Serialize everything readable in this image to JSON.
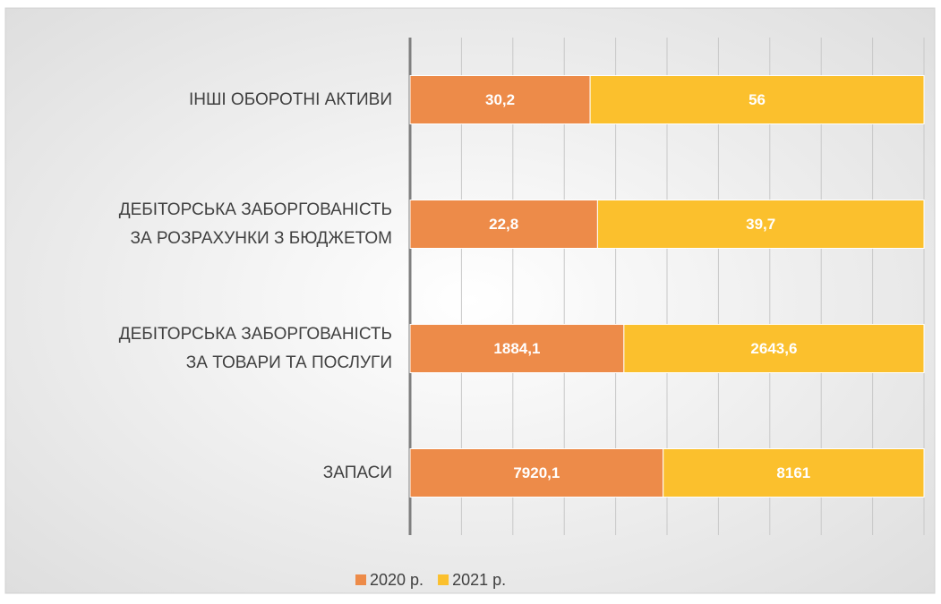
{
  "chart_data": {
    "type": "stacked_bar_100_horizontal",
    "categories": [
      "ІНШІ ОБОРОТНІ АКТИВИ",
      "ДЕБІТОРСЬКА ЗАБОРГОВАНІСТЬ\nЗА РОЗРАХУНКИ З БЮДЖЕТОМ",
      "ДЕБІТОРСЬКА ЗАБОРГОВАНІСТЬ\nЗА ТОВАРИ ТА ПОСЛУГИ",
      "ЗАПАСИ"
    ],
    "series": [
      {
        "name": "2020 р.",
        "color": "#ed8b49",
        "values": [
          30.2,
          22.8,
          1884.1,
          7920.1
        ],
        "value_labels": [
          "30,2",
          "22,8",
          "1884,1",
          "7920,1"
        ]
      },
      {
        "name": "2021 р.",
        "color": "#fbc02d",
        "values": [
          56,
          39.7,
          2643.6,
          8161
        ],
        "value_labels": [
          "56",
          "39,7",
          "2643,6",
          "8161"
        ]
      }
    ],
    "xlim": [
      0,
      100
    ],
    "xticks": [
      0,
      10,
      20,
      30,
      40,
      50,
      60,
      70,
      80,
      90,
      100
    ],
    "grid": true,
    "legend": "bottom"
  }
}
